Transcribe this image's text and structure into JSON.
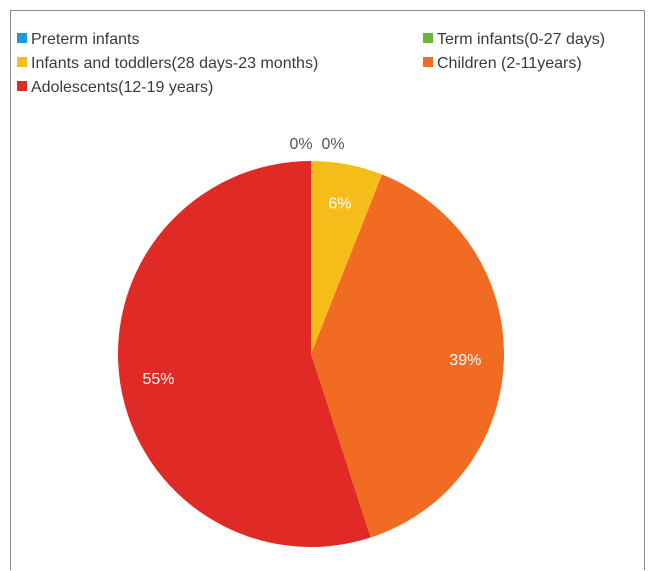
{
  "chart_data": {
    "type": "pie",
    "categories": [
      "Preterm infants",
      "Term infants(0-27 days)",
      "Infants and toddlers(28 days-23 months)",
      "Children (2-11years)",
      "Adolescents(12-19 years)"
    ],
    "values": [
      0,
      0,
      6,
      39,
      55
    ],
    "data_labels": [
      "0%",
      "0%",
      "6%",
      "39%",
      "55%"
    ],
    "colors": [
      "#1f9ad6",
      "#6ab437",
      "#f4bd1a",
      "#f26b22",
      "#e02a26"
    ],
    "legend_position": "top",
    "title": ""
  }
}
